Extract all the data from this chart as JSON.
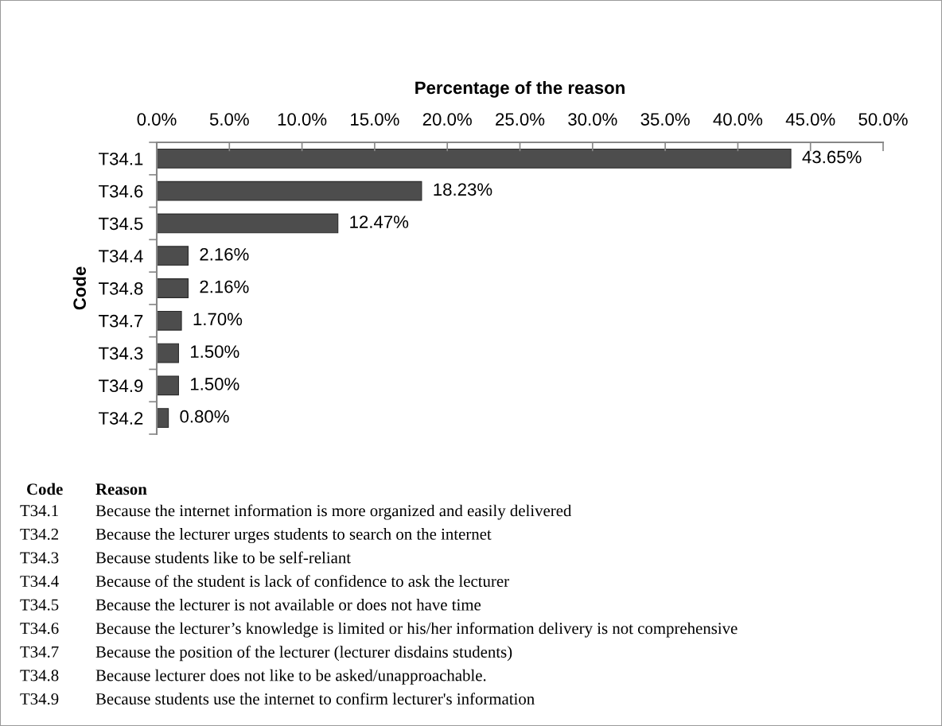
{
  "chart_data": {
    "type": "bar",
    "orientation": "horizontal",
    "xlabel": "Percentage of the reason",
    "ylabel": "Code",
    "categories": [
      "T34.1",
      "T34.6",
      "T34.5",
      "T34.4",
      "T34.8",
      "T34.7",
      "T34.3",
      "T34.9",
      "T34.2"
    ],
    "values": [
      43.65,
      18.23,
      12.47,
      2.16,
      2.16,
      1.7,
      1.5,
      1.5,
      0.8
    ],
    "value_labels": [
      "43.65%",
      "18.23%",
      "12.47%",
      "2.16%",
      "2.16%",
      "1.70%",
      "1.50%",
      "1.50%",
      "0.80%"
    ],
    "color": "#4d4d4d",
    "xlim": [
      0,
      50
    ],
    "xticks": [
      {
        "value": 0,
        "label": "0.0%"
      },
      {
        "value": 5,
        "label": "5.0%"
      },
      {
        "value": 10,
        "label": "10.0%"
      },
      {
        "value": 15,
        "label": "15.0%"
      },
      {
        "value": 20,
        "label": "20.0%"
      },
      {
        "value": 25,
        "label": "25.0%"
      },
      {
        "value": 30,
        "label": "30.0%"
      },
      {
        "value": 35,
        "label": "35.0%"
      },
      {
        "value": 40,
        "label": "40.0%"
      },
      {
        "value": 45,
        "label": "45.0%"
      },
      {
        "value": 50,
        "label": "50.0%"
      }
    ],
    "annotations": [
      "Code",
      "Reason",
      "T34.1",
      "Because the internet information is more organized and easily delivered",
      "T34.2",
      "Because the lecturer urges students to search on the internet",
      "T34.3",
      "Because students like to be self-reliant",
      "T34.4",
      "Because of the student is lack of confidence to ask the lecturer",
      "T34.5",
      "Because the lecturer is not available or does not have time",
      "T34.6",
      "Because the lecturer’s knowledge is limited or his/her information delivery is not comprehensive",
      "T34.7",
      "Because the position of the lecturer (lecturer disdains students)",
      "T34.8",
      "Because lecturer does not like to be asked/unapproachable.",
      "T34.9",
      "Because students use the internet to confirm lecturer's information"
    ]
  }
}
